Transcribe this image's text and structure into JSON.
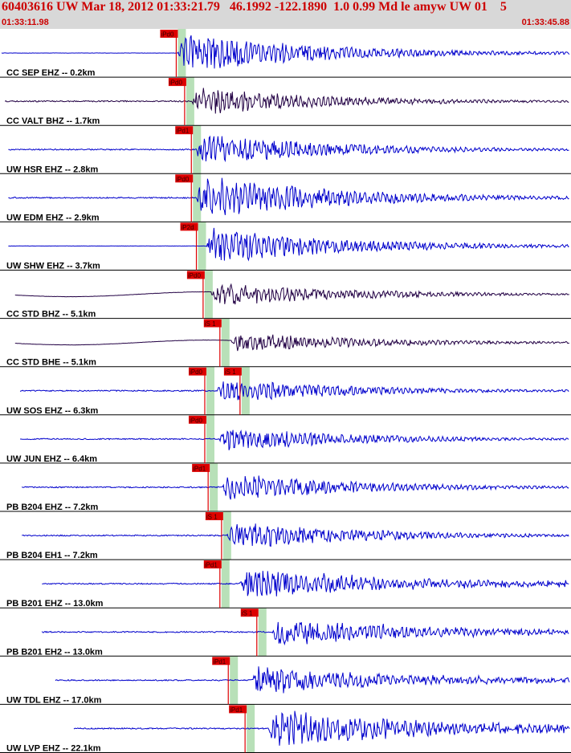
{
  "header": {
    "title": "60403616 UW Mar 18, 2012 01:33:21.79   46.1992 -122.1890  1.0 0.99 Md le amyw UW 01    5",
    "time_start": "01:33:11.98",
    "time_end": "01:33:45.88"
  },
  "colors": {
    "header_bg": "#d8d8d8",
    "header_text": "#cc0000",
    "trace_blue": "#0000cc",
    "trace_dark": "#220044",
    "pick_red": "#dd0000",
    "pick_window": "#b8e0b8",
    "panel_border": "#000000"
  },
  "chart_data": {
    "type": "line",
    "title": "60403616 UW Mar 18, 2012 01:33:21.79   46.1992 -122.1890  1.0 0.99 Md le amyw UW 01    5",
    "x_range": [
      "01:33:11.98",
      "01:33:45.88"
    ],
    "series": [
      {
        "name": "CC SEP EHZ -- 0.2km",
        "label": "CC SEP EHZ -- 0.2km",
        "color": "#0000cc",
        "picks": [
          {
            "label": "iPd0",
            "t": 10.5
          }
        ],
        "start": 0.0,
        "end": 34.0,
        "onset": 10.6,
        "amp": 1.0
      },
      {
        "name": "CC VALT BHZ -- 1.7km",
        "label": "CC VALT BHZ -- 1.7km",
        "color": "#220044",
        "picks": [
          {
            "label": "iPd0",
            "t": 11.0
          }
        ],
        "start": 0.3,
        "end": 34.3,
        "onset": 11.4,
        "amp": 0.7
      },
      {
        "name": "UW HSR EHZ -- 2.8km",
        "label": "UW HSR EHZ -- 2.8km",
        "color": "#0000cc",
        "picks": [
          {
            "label": "iPd1",
            "t": 11.4
          }
        ],
        "start": 0.5,
        "end": 34.5,
        "onset": 11.6,
        "amp": 0.8
      },
      {
        "name": "UW EDM EHZ -- 2.9km",
        "label": "UW EDM EHZ -- 2.9km",
        "color": "#0000cc",
        "picks": [
          {
            "label": "iPd0",
            "t": 11.4
          }
        ],
        "start": 0.5,
        "end": 34.5,
        "onset": 11.7,
        "amp": 1.1
      },
      {
        "name": "UW SHW EHZ -- 3.7km",
        "label": "UW SHW EHZ -- 3.7km",
        "color": "#0000cc",
        "picks": [
          {
            "label": "iP2d",
            "t": 11.7
          }
        ],
        "start": 0.5,
        "end": 34.5,
        "onset": 12.3,
        "amp": 0.9
      },
      {
        "name": "CC STD BHZ -- 5.1km",
        "label": "CC STD BHZ -- 5.1km",
        "color": "#220044",
        "picks": [
          {
            "label": "iPd0",
            "t": 12.1
          }
        ],
        "start": 0.9,
        "end": 34.9,
        "onset": 12.6,
        "amp": 0.6
      },
      {
        "name": "CC STD BHE -- 5.1km",
        "label": "CC STD BHE -- 5.1km",
        "color": "#220044",
        "picks": [
          {
            "label": "iS 1",
            "t": 13.1
          }
        ],
        "start": 0.9,
        "end": 34.9,
        "onset": 13.8,
        "amp": 0.5
      },
      {
        "name": "UW SOS EHZ -- 6.3km",
        "label": "UW SOS EHZ -- 6.3km",
        "color": "#0000cc",
        "picks": [
          {
            "label": "iPd0",
            "t": 12.2
          },
          {
            "label": "iS 1",
            "t": 14.3
          }
        ],
        "start": 1.2,
        "end": 35.2,
        "onset": 12.9,
        "amp": 0.6
      },
      {
        "name": "UW JUN EHZ -- 6.4km",
        "label": "UW JUN EHZ -- 6.4km",
        "color": "#0000cc",
        "picks": [
          {
            "label": "iPd0",
            "t": 12.2
          }
        ],
        "start": 1.2,
        "end": 35.2,
        "onset": 13.0,
        "amp": 0.6
      },
      {
        "name": "PB B204 EHZ -- 7.2km",
        "label": "PB B204 EHZ -- 7.2km",
        "color": "#0000cc",
        "picks": [
          {
            "label": "iPd1",
            "t": 12.4
          }
        ],
        "start": 1.3,
        "end": 35.3,
        "onset": 13.2,
        "amp": 0.7
      },
      {
        "name": "PB B204 EH1 -- 7.2km",
        "label": "PB B204 EH1 -- 7.2km",
        "color": "#0000cc",
        "picks": [
          {
            "label": "iS 1",
            "t": 13.2
          }
        ],
        "start": 1.3,
        "end": 35.3,
        "onset": 13.5,
        "amp": 0.7
      },
      {
        "name": "PB B201 EHZ -- 13.0km",
        "label": "PB B201 EHZ -- 13.0km",
        "color": "#0000cc",
        "picks": [
          {
            "label": "iPd1",
            "t": 13.1
          }
        ],
        "start": 2.5,
        "end": 36.5,
        "onset": 14.3,
        "amp": 0.8
      },
      {
        "name": "PB B201 EH2 -- 13.0km",
        "label": "PB B201 EH2 -- 13.0km",
        "color": "#0000cc",
        "picks": [
          {
            "label": "iS 1",
            "t": 15.3
          }
        ],
        "start": 2.5,
        "end": 36.5,
        "onset": 16.2,
        "amp": 0.7
      },
      {
        "name": "UW TDL EHZ -- 17.0km",
        "label": "UW TDL EHZ -- 17.0km",
        "color": "#0000cc",
        "picks": [
          {
            "label": "iPd1",
            "t": 13.6
          }
        ],
        "start": 3.3,
        "end": 37.3,
        "onset": 15.0,
        "amp": 0.7
      },
      {
        "name": "UW LVP EHZ -- 22.1km",
        "label": "UW LVP EHZ -- 22.1km",
        "color": "#0000cc",
        "picks": [
          {
            "label": "iPd1",
            "t": 14.6
          }
        ],
        "start": 4.4,
        "end": 38.4,
        "onset": 16.0,
        "amp": 1.0
      }
    ]
  }
}
